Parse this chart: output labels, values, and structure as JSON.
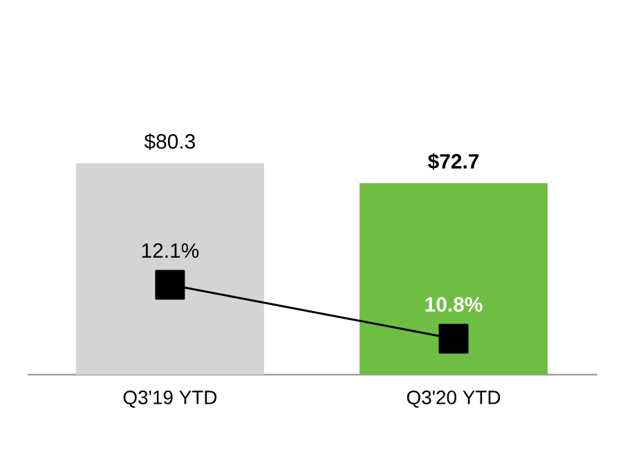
{
  "chart_data": {
    "type": "bar",
    "categories": [
      "Q3'19 YTD",
      "Q3'20 YTD"
    ],
    "series": [
      {
        "colors": [
          "#d4d4d4",
          "#6fbe44"
        ],
        "values": [
          80.3,
          72.7
        ],
        "value_labels": [
          "$80.3",
          "$72.7"
        ]
      },
      {
        "type": "line",
        "axis": "y2",
        "color": "#000000",
        "marker": "square",
        "values": [
          12.1,
          10.8
        ],
        "value_labels": [
          "12.1%",
          "10.8%"
        ]
      }
    ]
  }
}
